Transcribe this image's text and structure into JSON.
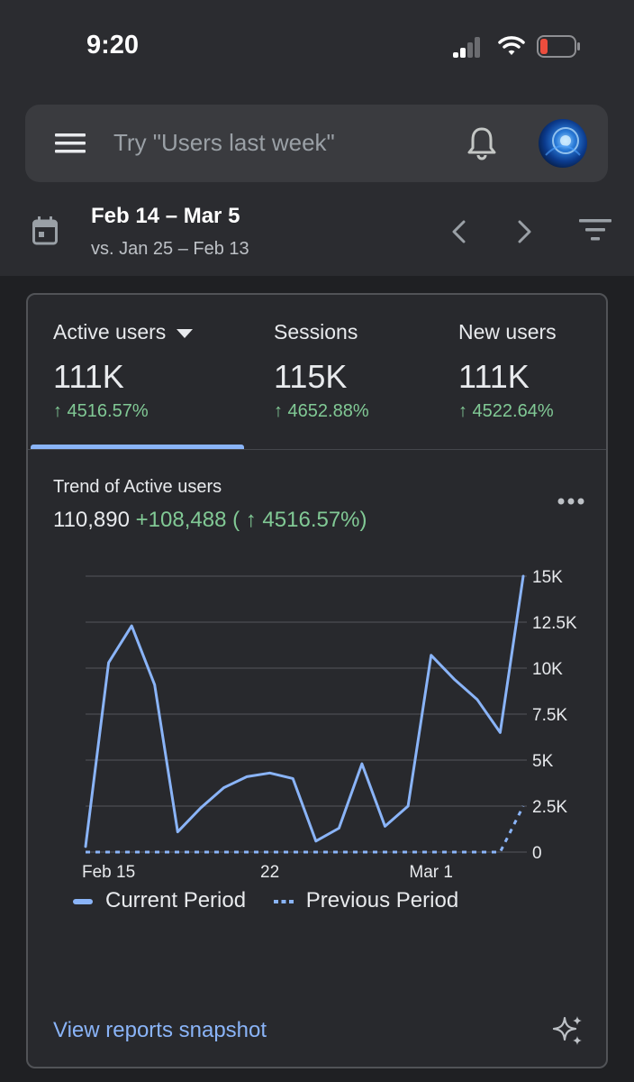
{
  "status_bar": {
    "time": "9:20"
  },
  "search": {
    "placeholder": "Try \"Users last week\""
  },
  "date_range": {
    "range": "Feb 14 – Mar 5",
    "compare": "vs. Jan 25 – Feb 13"
  },
  "metrics": [
    {
      "label": "Active users",
      "value": "111K",
      "change": "↑ 4516.57%"
    },
    {
      "label": "Sessions",
      "value": "115K",
      "change": "↑ 4652.88%"
    },
    {
      "label": "New users",
      "value": "111K",
      "change": "↑ 4522.64%"
    }
  ],
  "trend": {
    "title": "Trend of Active users",
    "total": "110,890",
    "delta": "+108,488 ( ↑ 4516.57%)"
  },
  "chart_data": {
    "type": "line",
    "title": "Trend of Active users",
    "x": [
      "Feb 14",
      "Feb 15",
      "Feb 16",
      "Feb 17",
      "Feb 18",
      "Feb 19",
      "Feb 20",
      "Feb 21",
      "Feb 22",
      "Feb 23",
      "Feb 24",
      "Feb 25",
      "Feb 26",
      "Feb 27",
      "Feb 28",
      "Mar 1",
      "Mar 2",
      "Mar 3",
      "Mar 4",
      "Mar 5"
    ],
    "x_tick_labels": [
      "Feb 15",
      "22",
      "Mar 1"
    ],
    "y_tick_labels": [
      "15K",
      "12.5K",
      "10K",
      "7.5K",
      "5K",
      "2.5K",
      "0"
    ],
    "ylim": [
      0,
      15000
    ],
    "series": [
      {
        "name": "Current Period",
        "style": "solid",
        "color": "#8ab4f8",
        "values": [
          300,
          10300,
          12300,
          9100,
          1100,
          2400,
          3500,
          4100,
          4300,
          4000,
          600,
          1300,
          4800,
          1400,
          2500,
          10700,
          9400,
          8300,
          6500,
          15000
        ]
      },
      {
        "name": "Previous Period",
        "style": "dashed",
        "color": "#8ab4f8",
        "values": [
          0,
          0,
          0,
          0,
          0,
          0,
          0,
          0,
          0,
          0,
          0,
          0,
          0,
          0,
          0,
          0,
          0,
          0,
          0,
          2500
        ]
      }
    ],
    "legend": [
      "Current Period",
      "Previous Period"
    ]
  },
  "footer": {
    "link": "View reports snapshot"
  }
}
